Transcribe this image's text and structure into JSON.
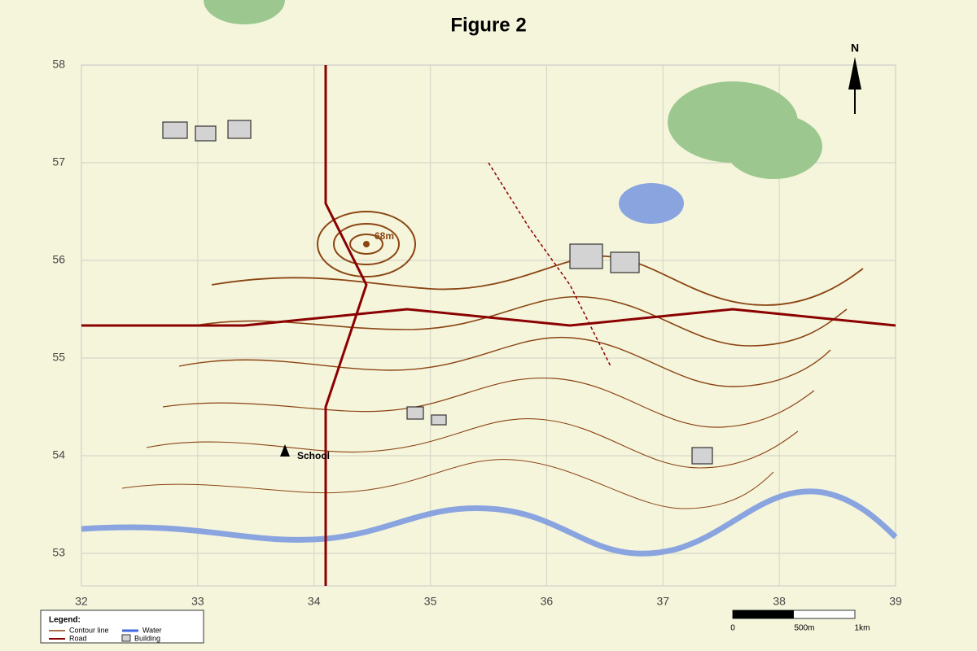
{
  "title": "Figure 2",
  "grid": {
    "xlim": [
      32,
      39
    ],
    "ylim": [
      52.6667,
      58
    ],
    "xticks": [
      32,
      33,
      34,
      35,
      36,
      37,
      38,
      39
    ],
    "yticks": [
      53,
      54,
      55,
      56,
      57,
      58
    ]
  },
  "north_label": "N",
  "peak_label": "68m",
  "school_label": "School",
  "legend": {
    "title": "Legend:",
    "items": [
      "Contour line",
      "Water",
      "Road",
      "Building"
    ]
  },
  "scale_bar": {
    "labels": [
      "0",
      "500m",
      "1km"
    ]
  }
}
